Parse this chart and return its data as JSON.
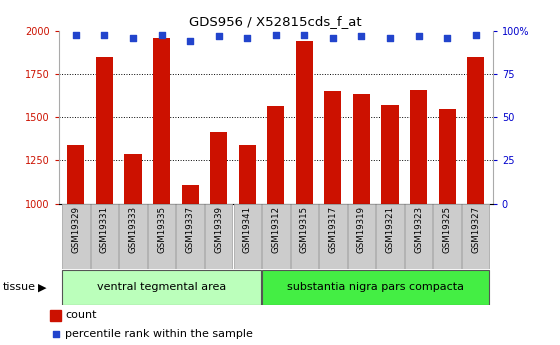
{
  "title": "GDS956 / X52815cds_f_at",
  "samples": [
    "GSM19329",
    "GSM19331",
    "GSM19333",
    "GSM19335",
    "GSM19337",
    "GSM19339",
    "GSM19341",
    "GSM19312",
    "GSM19315",
    "GSM19317",
    "GSM19319",
    "GSM19321",
    "GSM19323",
    "GSM19325",
    "GSM19327"
  ],
  "counts": [
    1340,
    1850,
    1285,
    1960,
    1110,
    1415,
    1340,
    1565,
    1940,
    1655,
    1635,
    1570,
    1660,
    1550,
    1850
  ],
  "percentiles": [
    98,
    98,
    96,
    98,
    94,
    97,
    96,
    98,
    98,
    96,
    97,
    96,
    97,
    96,
    98
  ],
  "bar_color": "#cc1100",
  "dot_color": "#2244cc",
  "ylim_left": [
    1000,
    2000
  ],
  "ylim_right": [
    0,
    100
  ],
  "yticks_left": [
    1000,
    1250,
    1500,
    1750,
    2000
  ],
  "yticks_right": [
    0,
    25,
    50,
    75,
    100
  ],
  "group1_label": "ventral tegmental area",
  "group2_label": "substantia nigra pars compacta",
  "group1_count": 7,
  "group2_count": 8,
  "group1_color": "#bbffbb",
  "group2_color": "#44ee44",
  "tissue_label": "tissue",
  "legend_count_label": "count",
  "legend_percentile_label": "percentile rank within the sample",
  "bg_color": "#ffffff",
  "left_axis_color": "#cc1100",
  "right_axis_color": "#0000cc",
  "xlabel_bg": "#cccccc",
  "xlabel_border": "#aaaaaa"
}
